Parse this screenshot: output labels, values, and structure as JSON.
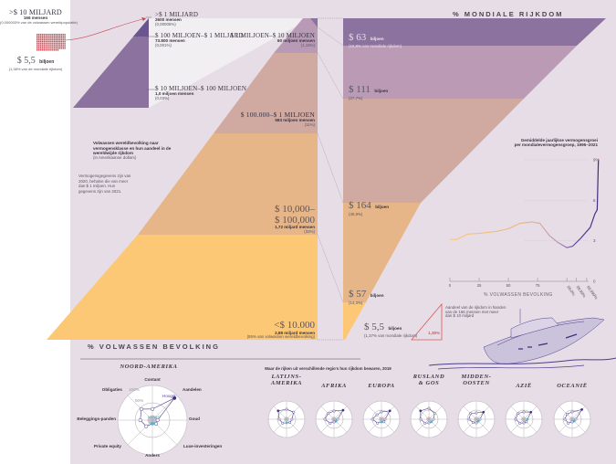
{
  "chart_data": [
    {
      "type": "area",
      "title": "Volwassen wereldbevolking naar vermogensklasse en hun aandeel in de wereldwijde rijkdom",
      "subtitle": "(in Amerikaanse dollars)",
      "note": "Vermogensgegevens zijn van 2020, behalve die van meer dan $ 1 miljoen. Hun gegevens zijn van 2021.",
      "left_axis_title": "% VOLWASSEN BEVOLKING",
      "right_axis_title": "% MONDIALE RIJKDOM",
      "population_bands": [
        {
          "class": ">$ 1 miljard",
          "people": "2600 mensen",
          "share": "(0,00005%)",
          "color": "#6b5590"
        },
        {
          "class": "$ 100 miljoen–$ 1 miljard",
          "people": "73.800 mensen",
          "share": "(0,001%)",
          "color": "#f1eff1"
        },
        {
          "class": "$ 10 miljoen–$ 100 miljoen",
          "people": "1,0 miljoen mensen",
          "share": "(0,03%)",
          "color": "#f1eff1"
        },
        {
          "class": "$ 1 miljoen–$ 10 miljoen",
          "people": "60 miljoen mensen",
          "share": "(1,15%)",
          "color": "#b99ab6"
        },
        {
          "class": "$ 100.000–$ 1 miljoen",
          "people": "583 miljoen mensen",
          "share": "(11%)",
          "color": "#d0a9a1"
        },
        {
          "class": "$ 10,000– $ 100,000",
          "people": "1,72 miljard mensen",
          "share": "(33%)",
          "color": "#e6b689"
        },
        {
          "class": "<$ 10.000",
          "people": "2,88 miljard mensen",
          "share": "(55% van volwassen wereldbevolking)",
          "color": "#fcc876"
        }
      ],
      "wealth_bands": [
        {
          "value": "$ 63",
          "unit": "biljoen",
          "share": "(15,8% van mondiale rijkdom)",
          "percent": 15.8,
          "color": "#8c729e"
        },
        {
          "value": "$ 111",
          "unit": "biljoen",
          "share": "(27,7%)",
          "percent": 27.7,
          "color": "#bb9ab6"
        },
        {
          "value": "$ 164",
          "unit": "biljoen",
          "share": "(40,9%)",
          "percent": 40.9,
          "color": "#d0a9a1"
        },
        {
          "value": "$ 57",
          "unit": "biljoen",
          "share": "(14,3%)",
          "percent": 14.3,
          "color": "#e6b689"
        },
        {
          "value": "$ 5,5",
          "unit": "biljoen",
          "share": "(1,37% van mondiale rijkdom)",
          "percent": 1.37,
          "color": "#fcc876"
        }
      ],
      "billionaires": {
        "class": ">$ 10 miljard",
        "people": "166 mensen",
        "share": "(0,000003% van de volwassen wereldpopulatie)",
        "wealth": "$ 5,5",
        "wealth_unit": "biljoen",
        "wealth_share": "(1,38% van de mondiale rijkdom)",
        "triangle_value": "1,38%",
        "triangle_note": "Aandeel van de rijkdom in handen van de 166 mensen met meer dan $ 10 miljard"
      }
    },
    {
      "type": "line",
      "title": "Gemiddelde jaarlijkse vermogensgroei per mondialevermogensgroep, 1995–2021",
      "xlabel": "% VOLWASSEN BEVOLKING",
      "ylabel": "",
      "x_ticks": [
        "0",
        "25",
        "50",
        "75",
        "99,0%",
        "99,99%",
        "99,999%"
      ],
      "y_ticks": [
        "0",
        "3",
        "6",
        "9%"
      ],
      "ylim": [
        0,
        9
      ],
      "grid": true,
      "points": [
        {
          "x": 0,
          "y": 3.1
        },
        {
          "x": 6,
          "y": 3.1
        },
        {
          "x": 15,
          "y": 3.5
        },
        {
          "x": 25,
          "y": 3.55
        },
        {
          "x": 40,
          "y": 3.7
        },
        {
          "x": 50,
          "y": 3.9
        },
        {
          "x": 60,
          "y": 4.3
        },
        {
          "x": 70,
          "y": 4.4
        },
        {
          "x": 77,
          "y": 4.3
        },
        {
          "x": 85,
          "y": 3.4
        },
        {
          "x": 92,
          "y": 2.9
        },
        {
          "x": 100,
          "y": 2.5
        },
        {
          "x": 105,
          "y": 2.6
        },
        {
          "x": 112,
          "y": 3.2
        },
        {
          "x": 120,
          "y": 4.0
        },
        {
          "x": 124,
          "y": 5.0
        },
        {
          "x": 126,
          "y": 5.3
        },
        {
          "x": 127,
          "y": 9.0
        }
      ]
    },
    {
      "type": "radar",
      "title": "Waar de rijken uit verschillende regio's hun rijkdom bewaren, 2019",
      "axes": [
        "Contant",
        "Aandelen",
        "Goud",
        "Luxe-investeringen",
        "Anders",
        "Private equity",
        "Beleggings-panden",
        "Obligaties"
      ],
      "ring_labels": [
        "50%",
        "100%"
      ],
      "highest_label": "Hoogst",
      "lowest_label": "Laagst",
      "regions": [
        {
          "name": "NOORD-AMERIKA",
          "values": [
            0.32,
            0.9,
            0.15,
            0.15,
            0.1,
            0.25,
            0.35,
            0.45
          ]
        },
        {
          "name": "LATIJNS-AMERIKA",
          "values": [
            0.55,
            0.55,
            0.3,
            0.25,
            0.2,
            0.3,
            0.4,
            0.65
          ]
        },
        {
          "name": "AFRIKA",
          "values": [
            0.45,
            0.7,
            0.2,
            0.15,
            0.15,
            0.3,
            0.5,
            0.45
          ]
        },
        {
          "name": "EUROPA",
          "values": [
            0.4,
            0.65,
            0.2,
            0.2,
            0.15,
            0.3,
            0.5,
            0.35
          ]
        },
        {
          "name": "RUSLAND & GOS",
          "values": [
            0.6,
            0.45,
            0.25,
            0.2,
            0.2,
            0.3,
            0.45,
            0.65
          ]
        },
        {
          "name": "MIDDEN-OOSTEN",
          "values": [
            0.35,
            0.55,
            0.2,
            0.15,
            0.2,
            0.25,
            0.4,
            0.45
          ]
        },
        {
          "name": "AZIË",
          "values": [
            0.4,
            0.55,
            0.2,
            0.2,
            0.2,
            0.3,
            0.45,
            0.45
          ]
        },
        {
          "name": "OCEANIË",
          "values": [
            0.4,
            0.75,
            0.2,
            0.15,
            0.15,
            0.3,
            0.4,
            0.4
          ]
        }
      ]
    }
  ],
  "labels": {
    "b10": {
      "class": ">$ 10 MILJARD",
      "people": "166 mensen",
      "share": "(0,000003% van de volwassen wereldpopulatie)",
      "wealth": "$ 5,5",
      "wealth_unit": "biljoen",
      "wealth_share": "(1,38% van de mondiale rijkdom)"
    },
    "b1": {
      "class": ">$ 1 MILJARD",
      "people": "2600 mensen",
      "share": "(0,00005%)"
    },
    "m100": {
      "class": "$ 100 MILJOEN–$ 1 MILJARD",
      "people": "73.800 mensen",
      "share": "(0,001%)"
    },
    "m1": {
      "class": "$ 1 MILJOEN–$ 10 MILJOEN",
      "people": "60 miljoen mensen",
      "share": "(1,15%)"
    },
    "m10": {
      "class": "$ 10 MILJOEN–$ 100 MILJOEN",
      "people": "1,0 miljoen mensen",
      "share": "(0,03%)"
    },
    "k100": {
      "class": "$ 100.000–$ 1 MILJOEN",
      "people": "583 miljoen mensen",
      "share": "(11%)"
    },
    "k10a": "$ 10,000–",
    "k10b": "$ 100,000",
    "k10": {
      "people": "1,72 miljard mensen",
      "share": "(33%)"
    },
    "lt10": {
      "class": "<$ 10.000",
      "people": "2,88 miljard mensen",
      "share": "(55% van volwassen wereldbevolking)"
    },
    "w63": {
      "value": "$ 63",
      "unit": "biljoen",
      "share": "(15,8% van mondiale rijkdom)"
    },
    "w111": {
      "value": "$ 111",
      "unit": "biljoen",
      "share": "(27,7%)"
    },
    "w164": {
      "value": "$ 164",
      "unit": "biljoen",
      "share": "(40,9%)"
    },
    "w57": {
      "value": "$ 57",
      "unit": "biljoen",
      "share": "(14,3%)"
    },
    "w5": {
      "value": "$ 5,5",
      "unit": "biljoen",
      "share": "(1,37% van mondiale rijkdom)"
    },
    "intro_title": "Volwassen wereldbevolking naar vermogensklasse en hun aandeel in de wereldwijde rijkdom",
    "intro_sub": "(in Amerikaanse dollars)",
    "intro_note": "Vermogensgegevens zijn van 2020, behalve die van meer dan $ 1 miljoen. Hun gegevens zijn van 2021.",
    "hdr_wealth": "% MONDIALE RIJKDOM",
    "hdr_pop": "% VOLWASSEN BEVOLKING",
    "growth_title1": "Gemiddelde jaarlijkse vermogensgroei",
    "growth_title2": "per mondialevermogensgroep, 1995–2021",
    "growth_xlabel": "% VOLWASSEN BEVOLKING",
    "tri_value": "1,38%",
    "tri_note1": "Aandeel van de rijkdom in handen",
    "tri_note2": "van de 166 mensen met meer",
    "tri_note3": "dan $ 10 miljard",
    "radar_title": "Waar de rijken uit verschillende regio's hun rijkdom bewaren, 2019",
    "na_title": "NOORD-AMERIKA",
    "hoogst": "Hoogst",
    "laagst": "Laagst",
    "r50": "50%",
    "r100": "100%"
  },
  "colors": {
    "panel": "#e7dde7",
    "dark_purple": "#8c729e",
    "deep_purple": "#6b5590",
    "light_purple": "#bb9ab6",
    "rose": "#d0a9a1",
    "tan": "#e6b689",
    "yellow": "#fcc876",
    "accent_red": "#d65a5a",
    "line_navy": "#3d2d7a",
    "cyan": "#4fb7d0"
  }
}
